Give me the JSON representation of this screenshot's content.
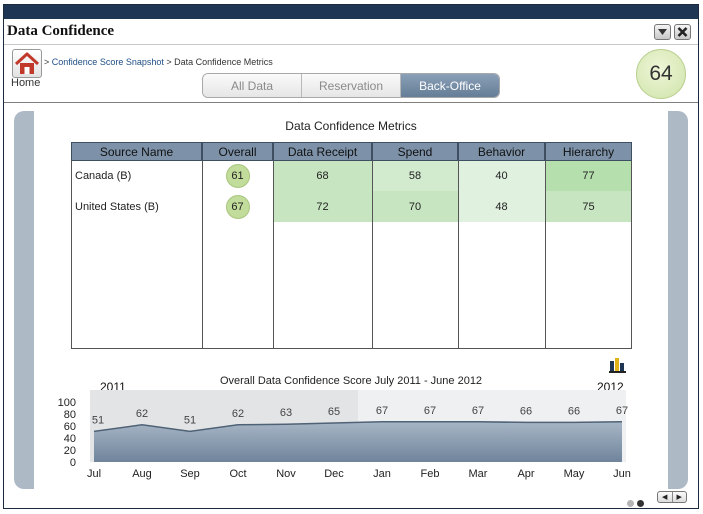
{
  "window": {
    "title": "Data Confidence",
    "minimize_icon": "chevron-down-icon",
    "close_icon": "close-icon"
  },
  "nav": {
    "home_label": "Home",
    "home_icon": "home-icon",
    "breadcrumb": {
      "sep1": ">",
      "link": "Confidence Score Snapshot",
      "sep2": ">",
      "current": "Data Confidence Metrics"
    }
  },
  "tabs": [
    {
      "label": "All Data",
      "active": false
    },
    {
      "label": "Reservation",
      "active": false
    },
    {
      "label": "Back-Office",
      "active": true
    }
  ],
  "score": "64",
  "metrics": {
    "title": "Data Confidence Metrics",
    "columns": [
      "Source Name",
      "Overall",
      "Data Receipt",
      "Spend",
      "Behavior",
      "Hierarchy"
    ],
    "rows": [
      {
        "source": "Canada (B)",
        "overall": "61",
        "data_receipt": "68",
        "spend": "58",
        "behavior": "40",
        "hierarchy": "77"
      },
      {
        "source": "United States (B)",
        "overall": "67",
        "data_receipt": "72",
        "spend": "70",
        "behavior": "48",
        "hierarchy": "75"
      }
    ]
  },
  "colors": {
    "accent": "#7d92a8",
    "good": "#c6e5c0",
    "fair": "#dcefdb",
    "strong": "#b6dfae",
    "badge": "#cfe3a8"
  },
  "chart_data": {
    "type": "area",
    "title": "Overall Data Confidence Score July 2011 - June 2012",
    "year_labels": [
      "2011",
      "2012"
    ],
    "categories": [
      "Jul",
      "Aug",
      "Sep",
      "Oct",
      "Nov",
      "Dec",
      "Jan",
      "Feb",
      "Mar",
      "Apr",
      "May",
      "Jun"
    ],
    "values": [
      51,
      62,
      51,
      62,
      63,
      65,
      67,
      67,
      67,
      66,
      66,
      67
    ],
    "ylim": [
      0,
      100
    ],
    "yticks": [
      0,
      20,
      40,
      60,
      80,
      100
    ],
    "grid": false,
    "icon": "bar-chart-icon"
  },
  "footer": {
    "prev_icon": "arrow-left-icon",
    "next_icon": "arrow-right-icon"
  }
}
